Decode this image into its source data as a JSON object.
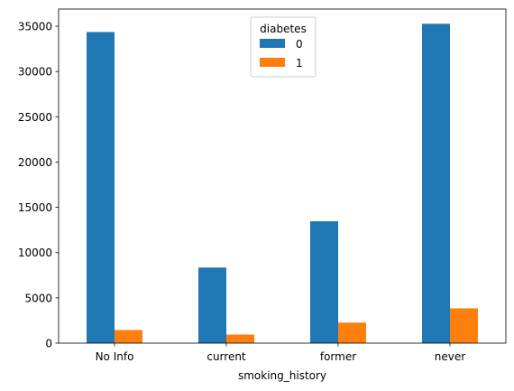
{
  "chart_data": {
    "type": "bar",
    "title": "",
    "xlabel": "smoking_history",
    "ylabel": "",
    "categories": [
      "No Info",
      "current",
      "former",
      "never"
    ],
    "ylim": [
      0,
      36900
    ],
    "yticks": [
      0,
      5000,
      10000,
      15000,
      20000,
      25000,
      30000,
      35000
    ],
    "ytick_labels": [
      "0",
      "5000",
      "10000",
      "15000",
      "20000",
      "25000",
      "30000",
      "35000"
    ],
    "grid": false,
    "legend": {
      "title": "diabetes",
      "placement": "top-center"
    },
    "series": [
      {
        "name": "0",
        "color": "#1f77b4",
        "values": [
          34360,
          8350,
          13460,
          35270
        ]
      },
      {
        "name": "1",
        "color": "#ff7f0e",
        "values": [
          1450,
          950,
          2270,
          3850
        ]
      }
    ]
  }
}
